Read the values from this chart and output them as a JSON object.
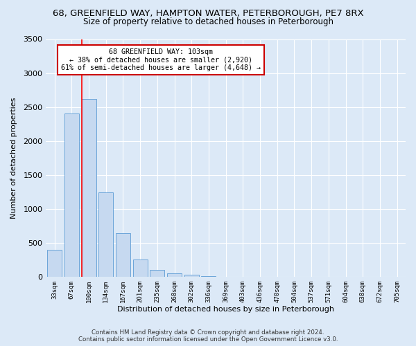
{
  "title_line1": "68, GREENFIELD WAY, HAMPTON WATER, PETERBOROUGH, PE7 8RX",
  "title_line2": "Size of property relative to detached houses in Peterborough",
  "xlabel": "Distribution of detached houses by size in Peterborough",
  "ylabel": "Number of detached properties",
  "bar_labels": [
    "33sqm",
    "67sqm",
    "100sqm",
    "134sqm",
    "167sqm",
    "201sqm",
    "235sqm",
    "268sqm",
    "302sqm",
    "336sqm",
    "369sqm",
    "403sqm",
    "436sqm",
    "470sqm",
    "504sqm",
    "537sqm",
    "571sqm",
    "604sqm",
    "638sqm",
    "672sqm",
    "705sqm"
  ],
  "bar_values": [
    400,
    2400,
    2620,
    1240,
    640,
    250,
    100,
    50,
    25,
    10,
    0,
    0,
    0,
    0,
    0,
    0,
    0,
    0,
    0,
    0,
    0
  ],
  "bar_color": "#c6d9f0",
  "bar_edge_color": "#5b9bd5",
  "red_line_index": 2,
  "ylim": [
    0,
    3500
  ],
  "yticks": [
    0,
    500,
    1000,
    1500,
    2000,
    2500,
    3000,
    3500
  ],
  "annotation_title": "68 GREENFIELD WAY: 103sqm",
  "annotation_line1": "← 38% of detached houses are smaller (2,920)",
  "annotation_line2": "61% of semi-detached houses are larger (4,648) →",
  "annotation_box_color": "#ffffff",
  "annotation_box_edge": "#cc0000",
  "footnote_line1": "Contains HM Land Registry data © Crown copyright and database right 2024.",
  "footnote_line2": "Contains public sector information licensed under the Open Government Licence v3.0.",
  "bg_color": "#dce9f7",
  "plot_bg_color": "#dce9f7",
  "grid_color": "#ffffff",
  "title_fontsize": 9.5,
  "subtitle_fontsize": 8.5
}
